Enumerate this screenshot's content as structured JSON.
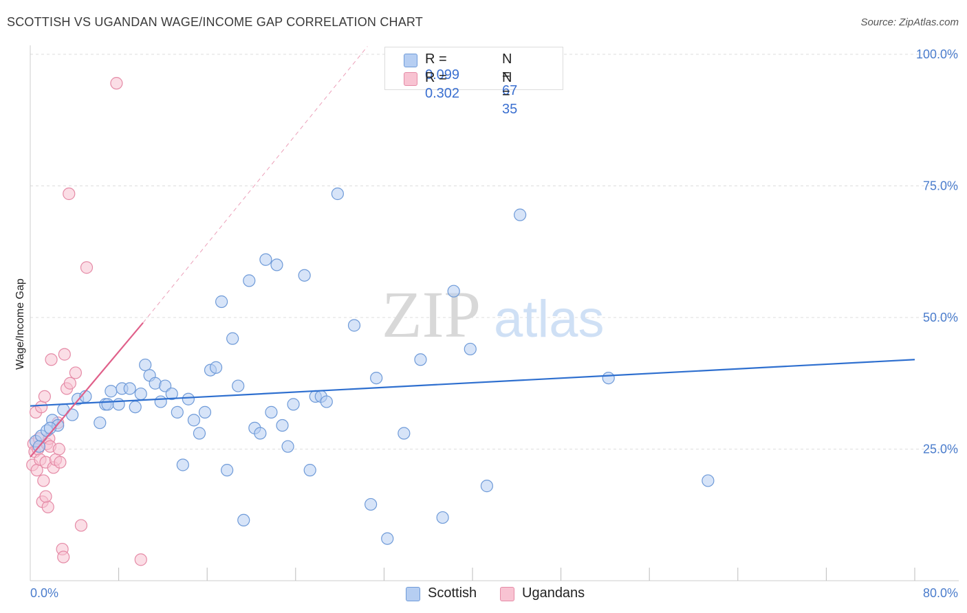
{
  "title": "SCOTTISH VS UGANDAN WAGE/INCOME GAP CORRELATION CHART",
  "source": "Source: ZipAtlas.com",
  "watermark": {
    "zip": "ZIP",
    "atlas": "atlas"
  },
  "legend": {
    "rows": [
      {
        "r_label": "R = ",
        "r_value": "0.099",
        "n_label": "N = ",
        "n_value": "67"
      },
      {
        "r_label": "R = ",
        "r_value": "0.302",
        "n_label": "N = ",
        "n_value": "35"
      }
    ]
  },
  "bottom_legend": [
    "Scottish",
    "Ugandans"
  ],
  "colors": {
    "scottish_fill": "#b6cef2",
    "scottish_stroke": "#6e9ad8",
    "scottish_line": "#2e6fcf",
    "ugandan_fill": "#f8c3d2",
    "ugandan_stroke": "#e58aa6",
    "ugandan_line": "#e0608a",
    "tick_text": "#4a7ccc",
    "grid": "#dddddd"
  },
  "chart_data": {
    "type": "scatter",
    "title": "SCOTTISH VS UGANDAN WAGE/INCOME GAP CORRELATION CHART",
    "xlabel": "",
    "ylabel": "Wage/Income Gap",
    "x_unit": "%",
    "y_unit": "%",
    "xlim": [
      0,
      80
    ],
    "ylim": [
      0,
      100
    ],
    "x_tick_labels": [
      "0.0%",
      "80.0%"
    ],
    "y_tick_labels": [
      "25.0%",
      "50.0%",
      "75.0%",
      "100.0%"
    ],
    "y_ticks": [
      25,
      50,
      75,
      100
    ],
    "grid": true,
    "legend_placement": "top-center",
    "series": [
      {
        "name": "Scottish",
        "r": 0.099,
        "n": 67,
        "trend": {
          "x": [
            0,
            80
          ],
          "y": [
            33.2,
            42.0
          ],
          "style": "solid"
        },
        "points": [
          [
            0.5,
            26.5
          ],
          [
            1.0,
            27.5
          ],
          [
            1.5,
            28.5
          ],
          [
            2.0,
            30.5
          ],
          [
            2.5,
            29.5
          ],
          [
            3.0,
            32.5
          ],
          [
            3.8,
            31.5
          ],
          [
            4.3,
            34.5
          ],
          [
            5.0,
            35.0
          ],
          [
            6.3,
            30.0
          ],
          [
            6.8,
            33.5
          ],
          [
            7.0,
            33.5
          ],
          [
            7.3,
            36.0
          ],
          [
            8.0,
            33.5
          ],
          [
            8.3,
            36.5
          ],
          [
            9.0,
            36.5
          ],
          [
            9.5,
            33.0
          ],
          [
            10.0,
            35.5
          ],
          [
            10.4,
            41.0
          ],
          [
            10.8,
            39.0
          ],
          [
            11.3,
            37.5
          ],
          [
            11.8,
            34.0
          ],
          [
            12.2,
            37.0
          ],
          [
            12.8,
            35.5
          ],
          [
            13.3,
            32.0
          ],
          [
            13.8,
            22.0
          ],
          [
            14.3,
            34.5
          ],
          [
            14.8,
            30.5
          ],
          [
            15.3,
            28.0
          ],
          [
            15.8,
            32.0
          ],
          [
            16.3,
            40.0
          ],
          [
            16.8,
            40.5
          ],
          [
            17.3,
            53.0
          ],
          [
            17.8,
            21.0
          ],
          [
            18.3,
            46.0
          ],
          [
            18.8,
            37.0
          ],
          [
            19.3,
            11.5
          ],
          [
            19.8,
            57.0
          ],
          [
            20.3,
            29.0
          ],
          [
            20.8,
            28.0
          ],
          [
            21.3,
            61.0
          ],
          [
            21.8,
            32.0
          ],
          [
            22.3,
            60.0
          ],
          [
            22.8,
            29.5
          ],
          [
            23.3,
            25.5
          ],
          [
            23.8,
            33.5
          ],
          [
            24.8,
            58.0
          ],
          [
            25.3,
            21.0
          ],
          [
            25.8,
            35.0
          ],
          [
            26.3,
            35.0
          ],
          [
            26.8,
            34.0
          ],
          [
            27.8,
            73.5
          ],
          [
            29.3,
            48.5
          ],
          [
            30.8,
            14.5
          ],
          [
            31.3,
            38.5
          ],
          [
            32.3,
            8.0
          ],
          [
            33.8,
            28.0
          ],
          [
            35.3,
            42.0
          ],
          [
            37.3,
            12.0
          ],
          [
            38.3,
            55.0
          ],
          [
            39.8,
            44.0
          ],
          [
            41.3,
            18.0
          ],
          [
            44.3,
            69.5
          ],
          [
            52.3,
            38.5
          ],
          [
            61.3,
            19.0
          ],
          [
            1.8,
            29.0
          ],
          [
            0.8,
            25.5
          ]
        ]
      },
      {
        "name": "Ugandans",
        "r": 0.302,
        "n": 35,
        "trend": {
          "x": [
            0,
            10.2
          ],
          "y": [
            23.5,
            49.0
          ],
          "style": "solid",
          "extended_x": [
            10.2,
            30.5
          ],
          "extended_y": [
            49.0,
            101.5
          ],
          "extended_style": "dashed"
        },
        "points": [
          [
            0.2,
            22.0
          ],
          [
            0.3,
            26.0
          ],
          [
            0.4,
            24.5
          ],
          [
            0.5,
            32.0
          ],
          [
            0.6,
            21.0
          ],
          [
            0.7,
            25.0
          ],
          [
            0.8,
            27.0
          ],
          [
            0.9,
            23.0
          ],
          [
            1.0,
            33.0
          ],
          [
            1.1,
            15.0
          ],
          [
            1.2,
            19.0
          ],
          [
            1.3,
            35.0
          ],
          [
            1.4,
            22.5
          ],
          [
            1.5,
            26.0
          ],
          [
            1.6,
            14.0
          ],
          [
            1.7,
            27.0
          ],
          [
            1.8,
            25.5
          ],
          [
            1.9,
            42.0
          ],
          [
            2.1,
            21.5
          ],
          [
            2.3,
            23.0
          ],
          [
            2.5,
            30.0
          ],
          [
            2.6,
            25.0
          ],
          [
            2.7,
            22.5
          ],
          [
            2.9,
            6.0
          ],
          [
            3.0,
            4.5
          ],
          [
            3.1,
            43.0
          ],
          [
            3.3,
            36.5
          ],
          [
            3.5,
            73.5
          ],
          [
            3.6,
            37.5
          ],
          [
            4.1,
            39.5
          ],
          [
            4.6,
            10.5
          ],
          [
            5.1,
            59.5
          ],
          [
            7.8,
            94.5
          ],
          [
            10.0,
            4.0
          ],
          [
            1.4,
            16.0
          ]
        ]
      }
    ]
  }
}
